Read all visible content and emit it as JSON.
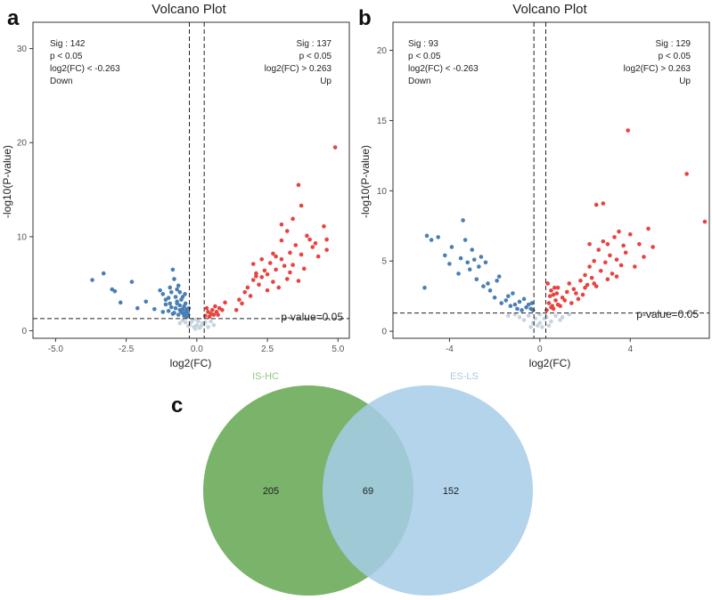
{
  "chart_data": [
    {
      "panel": "a",
      "type": "scatter",
      "title": "Volcano Plot",
      "xlabel": "log2(FC)",
      "ylabel": "-log10(P-value)",
      "xlim": [
        -5.8,
        5.4
      ],
      "ylim": [
        -0.8,
        32.8
      ],
      "xticks": [
        -5.0,
        -2.5,
        0.0,
        2.5,
        5.0
      ],
      "xtick_labels": [
        "-5.0",
        "-2.5",
        "0.0",
        "2.5",
        "5.0"
      ],
      "yticks": [
        0,
        10,
        20,
        30
      ],
      "ytick_labels": [
        "0",
        "10",
        "20",
        "30"
      ],
      "fc_threshold": [
        -0.263,
        0.263
      ],
      "p_line": 1.3,
      "p_line_label": "p-value=0.05",
      "down_annotation": [
        "Sig : 142",
        "p < 0.05",
        "log2(FC) < -0.263",
        "Down"
      ],
      "up_annotation": [
        "Sig : 137",
        "p < 0.05",
        "log2(FC) > 0.263",
        "Up"
      ],
      "colors": {
        "down": "#4a7fb5",
        "up": "#e8433f",
        "ns": "#c7d4de"
      },
      "series": [
        {
          "name": "Down",
          "color": "#4a7fb5",
          "points": [
            [
              -3.7,
              5.4
            ],
            [
              -3.3,
              6.1
            ],
            [
              -2.9,
              4.2
            ],
            [
              -2.7,
              3.0
            ],
            [
              -3.0,
              4.4
            ],
            [
              -2.3,
              5.2
            ],
            [
              -2.1,
              2.4
            ],
            [
              -1.8,
              3.1
            ],
            [
              -1.5,
              2.3
            ],
            [
              -1.3,
              4.3
            ],
            [
              -1.0,
              3.5
            ],
            [
              -1.2,
              3.9
            ],
            [
              -1.1,
              2.8
            ],
            [
              -0.95,
              4.6
            ],
            [
              -0.85,
              6.5
            ],
            [
              -0.8,
              5.5
            ],
            [
              -0.75,
              3.6
            ],
            [
              -0.7,
              2.9
            ],
            [
              -0.65,
              4.8
            ],
            [
              -0.6,
              2.2
            ],
            [
              -0.55,
              3.3
            ],
            [
              -0.5,
              1.9
            ],
            [
              -0.45,
              2.6
            ],
            [
              -0.4,
              1.8
            ],
            [
              -0.35,
              2.3
            ],
            [
              -0.3,
              1.7
            ],
            [
              -1.0,
              2.1
            ],
            [
              -0.9,
              2.5
            ],
            [
              -0.8,
              1.9
            ],
            [
              -0.7,
              3.1
            ],
            [
              -0.6,
              4.1
            ],
            [
              -0.55,
              2.0
            ],
            [
              -0.5,
              3.6
            ],
            [
              -0.45,
              1.6
            ],
            [
              -0.4,
              2.9
            ],
            [
              -0.35,
              1.5
            ],
            [
              -1.2,
              2.0
            ],
            [
              -1.1,
              3.3
            ],
            [
              -0.95,
              2.9
            ],
            [
              -0.85,
              1.8
            ],
            [
              -0.75,
              2.4
            ],
            [
              -0.65,
              1.7
            ],
            [
              -0.6,
              2.7
            ],
            [
              -0.5,
              2.3
            ],
            [
              -0.42,
              3.9
            ],
            [
              -0.38,
              2.1
            ],
            [
              -0.32,
              1.9
            ],
            [
              -0.28,
              2.4
            ],
            [
              -0.9,
              4.1
            ],
            [
              -0.7,
              4.4
            ]
          ]
        },
        {
          "name": "Up",
          "color": "#e8433f",
          "points": [
            [
              0.3,
              1.6
            ],
            [
              0.4,
              2.0
            ],
            [
              0.5,
              1.8
            ],
            [
              0.55,
              2.2
            ],
            [
              0.6,
              1.7
            ],
            [
              0.65,
              2.6
            ],
            [
              0.7,
              2.0
            ],
            [
              0.75,
              1.7
            ],
            [
              0.8,
              2.4
            ],
            [
              0.9,
              2.2
            ],
            [
              1.0,
              3.0
            ],
            [
              0.45,
              1.5
            ],
            [
              0.35,
              2.4
            ],
            [
              1.4,
              2.2
            ],
            [
              1.5,
              3.3
            ],
            [
              1.6,
              2.9
            ],
            [
              1.7,
              4.1
            ],
            [
              1.8,
              4.6
            ],
            [
              1.9,
              3.7
            ],
            [
              2.0,
              7.1
            ],
            [
              2.0,
              5.4
            ],
            [
              2.1,
              6.1
            ],
            [
              2.2,
              4.9
            ],
            [
              2.3,
              5.7
            ],
            [
              2.4,
              6.4
            ],
            [
              2.5,
              6.0
            ],
            [
              2.5,
              4.3
            ],
            [
              2.6,
              7.2
            ],
            [
              2.7,
              5.2
            ],
            [
              2.8,
              6.5
            ],
            [
              2.9,
              4.6
            ],
            [
              3.0,
              7.6
            ],
            [
              3.1,
              6.9
            ],
            [
              3.2,
              5.5
            ],
            [
              3.3,
              8.3
            ],
            [
              3.3,
              6.2
            ],
            [
              3.4,
              7.0
            ],
            [
              3.5,
              9.1
            ],
            [
              3.6,
              5.3
            ],
            [
              3.7,
              8.1
            ],
            [
              3.8,
              6.6
            ],
            [
              3.9,
              10.1
            ],
            [
              4.0,
              9.7
            ],
            [
              4.1,
              8.9
            ],
            [
              4.2,
              9.3
            ],
            [
              4.3,
              7.9
            ],
            [
              4.5,
              11.1
            ],
            [
              4.6,
              8.6
            ],
            [
              3.6,
              15.5
            ],
            [
              3.0,
              11.3
            ],
            [
              3.4,
              11.9
            ],
            [
              3.7,
              13.3
            ],
            [
              4.9,
              19.5
            ],
            [
              4.6,
              9.7
            ],
            [
              3.0,
              9.6
            ],
            [
              2.7,
              8.2
            ],
            [
              2.3,
              7.6
            ],
            [
              2.1,
              5.8
            ],
            [
              2.8,
              7.9
            ],
            [
              3.2,
              10.6
            ]
          ]
        },
        {
          "name": "NS",
          "color": "#c7d4de",
          "points": [
            [
              -0.2,
              0.9
            ],
            [
              -0.1,
              0.4
            ],
            [
              0.0,
              0.6
            ],
            [
              0.1,
              0.3
            ],
            [
              0.2,
              0.8
            ],
            [
              -0.3,
              0.5
            ],
            [
              0.3,
              0.9
            ],
            [
              -0.15,
              1.1
            ],
            [
              0.05,
              1.0
            ],
            [
              0.15,
              0.5
            ],
            [
              -0.05,
              0.2
            ],
            [
              0.25,
              0.7
            ],
            [
              -0.25,
              0.6
            ],
            [
              0.4,
              0.4
            ],
            [
              -0.4,
              0.9
            ],
            [
              0.5,
              1.0
            ],
            [
              -0.5,
              1.1
            ],
            [
              0.6,
              0.6
            ],
            [
              -0.6,
              0.8
            ],
            [
              0.0,
              1.2
            ]
          ]
        }
      ]
    },
    {
      "panel": "b",
      "type": "scatter",
      "title": "Volcano Plot",
      "xlabel": "log2(FC)",
      "ylabel": "-log10(P-value)",
      "xlim": [
        -6.5,
        7.5
      ],
      "ylim": [
        -0.5,
        22.0
      ],
      "xticks": [
        -4,
        0,
        4
      ],
      "xtick_labels": [
        "-4",
        "0",
        "4"
      ],
      "yticks": [
        0,
        5,
        10,
        15,
        20
      ],
      "ytick_labels": [
        "0",
        "5",
        "10",
        "15",
        "20"
      ],
      "fc_threshold": [
        -0.263,
        0.263
      ],
      "p_line": 1.3,
      "p_line_label": "p-value=0.05",
      "down_annotation": [
        "Sig : 93",
        "p < 0.05",
        "log2(FC) < -0.263",
        "Down"
      ],
      "up_annotation": [
        "Sig : 129",
        "p < 0.05",
        "log2(FC) > 0.263",
        "Up"
      ],
      "colors": {
        "down": "#4a7fb5",
        "up": "#e8433f",
        "ns": "#c7d4de"
      },
      "series": [
        {
          "name": "Down",
          "color": "#4a7fb5",
          "points": [
            [
              -5.0,
              6.8
            ],
            [
              -4.8,
              6.5
            ],
            [
              -4.5,
              6.7
            ],
            [
              -5.1,
              3.1
            ],
            [
              -4.2,
              5.4
            ],
            [
              -3.9,
              6.0
            ],
            [
              -3.6,
              4.1
            ],
            [
              -3.4,
              7.9
            ],
            [
              -3.5,
              5.2
            ],
            [
              -3.3,
              6.5
            ],
            [
              -3.1,
              4.4
            ],
            [
              -3.0,
              5.8
            ],
            [
              -2.8,
              3.7
            ],
            [
              -2.9,
              5.1
            ],
            [
              -2.7,
              4.6
            ],
            [
              -2.5,
              3.2
            ],
            [
              -2.4,
              4.9
            ],
            [
              -2.2,
              2.9
            ],
            [
              -2.0,
              2.4
            ],
            [
              -1.9,
              3.6
            ],
            [
              -1.7,
              2.0
            ],
            [
              -1.5,
              2.2
            ],
            [
              -1.3,
              1.8
            ],
            [
              -1.2,
              2.7
            ],
            [
              -1.0,
              1.6
            ],
            [
              -0.9,
              2.1
            ],
            [
              -0.8,
              1.5
            ],
            [
              -0.7,
              2.3
            ],
            [
              -0.6,
              1.7
            ],
            [
              -0.5,
              1.9
            ],
            [
              -0.4,
              1.6
            ],
            [
              -0.35,
              2.0
            ],
            [
              -0.3,
              1.5
            ],
            [
              -1.8,
              3.9
            ],
            [
              -1.4,
              2.5
            ],
            [
              -1.1,
              1.9
            ],
            [
              -2.3,
              3.4
            ],
            [
              -3.2,
              4.9
            ],
            [
              -4.0,
              4.8
            ],
            [
              -2.6,
              5.3
            ]
          ]
        },
        {
          "name": "Up",
          "color": "#e8433f",
          "points": [
            [
              0.3,
              1.5
            ],
            [
              0.4,
              2.0
            ],
            [
              0.5,
              1.7
            ],
            [
              0.6,
              2.6
            ],
            [
              0.7,
              2.2
            ],
            [
              0.8,
              3.1
            ],
            [
              0.5,
              2.9
            ],
            [
              0.35,
              3.4
            ],
            [
              0.6,
              1.6
            ],
            [
              0.9,
              1.8
            ],
            [
              1.0,
              2.4
            ],
            [
              1.2,
              2.8
            ],
            [
              1.4,
              2.0
            ],
            [
              1.5,
              3.0
            ],
            [
              1.7,
              2.3
            ],
            [
              1.8,
              3.6
            ],
            [
              1.9,
              2.6
            ],
            [
              2.0,
              4.0
            ],
            [
              2.1,
              3.3
            ],
            [
              2.2,
              4.6
            ],
            [
              2.3,
              3.8
            ],
            [
              2.4,
              5.0
            ],
            [
              2.5,
              3.2
            ],
            [
              2.6,
              5.8
            ],
            [
              2.7,
              4.3
            ],
            [
              2.8,
              6.4
            ],
            [
              2.9,
              4.9
            ],
            [
              3.0,
              3.7
            ],
            [
              3.1,
              5.4
            ],
            [
              3.2,
              4.1
            ],
            [
              3.3,
              6.7
            ],
            [
              3.4,
              5.1
            ],
            [
              3.5,
              7.1
            ],
            [
              3.6,
              4.7
            ],
            [
              3.7,
              6.1
            ],
            [
              3.8,
              5.6
            ],
            [
              4.0,
              6.9
            ],
            [
              4.2,
              4.6
            ],
            [
              4.4,
              6.2
            ],
            [
              4.6,
              5.3
            ],
            [
              4.8,
              7.3
            ],
            [
              5.0,
              6.0
            ],
            [
              2.5,
              9.0
            ],
            [
              2.8,
              9.1
            ],
            [
              3.9,
              14.3
            ],
            [
              6.5,
              11.2
            ],
            [
              7.3,
              7.8
            ],
            [
              2.2,
              6.2
            ],
            [
              0.8,
              1.9
            ],
            [
              1.1,
              2.2
            ],
            [
              0.45,
              2.5
            ],
            [
              0.55,
              1.8
            ],
            [
              0.75,
              2.7
            ],
            [
              0.65,
              3.1
            ],
            [
              1.3,
              3.4
            ],
            [
              1.6,
              2.7
            ],
            [
              2.0,
              3.1
            ],
            [
              2.4,
              3.4
            ],
            [
              3.0,
              6.2
            ],
            [
              3.4,
              3.9
            ]
          ]
        },
        {
          "name": "NS",
          "color": "#c7d4de",
          "points": [
            [
              -0.2,
              0.9
            ],
            [
              -0.1,
              0.4
            ],
            [
              0.0,
              0.6
            ],
            [
              0.1,
              0.3
            ],
            [
              0.2,
              0.9
            ],
            [
              -0.3,
              0.6
            ],
            [
              0.3,
              1.0
            ],
            [
              -0.5,
              1.1
            ],
            [
              0.5,
              0.7
            ],
            [
              -0.7,
              0.8
            ],
            [
              0.7,
              1.1
            ],
            [
              -0.9,
              1.0
            ],
            [
              0.9,
              0.8
            ],
            [
              -1.1,
              1.2
            ],
            [
              1.0,
              1.0
            ],
            [
              0.0,
              1.2
            ],
            [
              -0.4,
              0.3
            ],
            [
              0.4,
              0.4
            ],
            [
              -1.4,
              1.1
            ],
            [
              1.3,
              1.2
            ]
          ]
        }
      ]
    },
    {
      "panel": "c",
      "type": "venn",
      "sets": [
        {
          "name": "IS-HC",
          "color": "#7ab36a",
          "label_color": "#8fc67e"
        },
        {
          "name": "ES-LS",
          "color": "#a6cce6",
          "label_color": "#a9cbe2"
        }
      ],
      "counts": {
        "left_only": "205",
        "overlap": "69",
        "right_only": "152"
      }
    }
  ]
}
